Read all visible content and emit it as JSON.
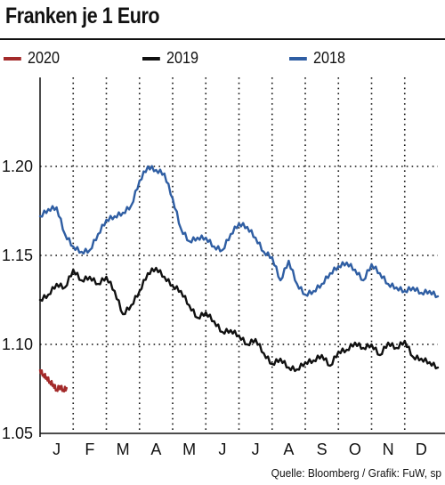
{
  "title": "Franken je 1 Euro",
  "source": "Quelle: Bloomberg / Grafik: FuW, sp",
  "legend": [
    {
      "label": "2020",
      "color": "#a32a2a"
    },
    {
      "label": "2019",
      "color": "#111111"
    },
    {
      "label": "2018",
      "color": "#2f5ea3"
    }
  ],
  "chart_data": {
    "type": "line",
    "title": "Franken je 1 Euro",
    "xlabel": "",
    "ylabel": "",
    "x_tick_labels": [
      "J",
      "F",
      "M",
      "A",
      "M",
      "J",
      "J",
      "A",
      "S",
      "O",
      "N",
      "D"
    ],
    "x_unit": "month index (0 = start of January, 12 = end of December)",
    "xlim": [
      0,
      12
    ],
    "y_ticks": [
      1.05,
      1.1,
      1.15,
      1.2
    ],
    "y_tick_labels": [
      "1.05",
      "1.10",
      "1.15",
      "1.20"
    ],
    "ylim": [
      1.05,
      1.25
    ],
    "grid": true,
    "grid_style": "dotted vertical month boundaries, dotted horizontal at y ticks",
    "legend_position": "top",
    "series": [
      {
        "name": "2020",
        "color": "#a32a2a",
        "x": [
          0,
          0.1,
          0.2,
          0.3,
          0.4,
          0.5,
          0.6,
          0.7,
          0.8
        ],
        "y": [
          1.0855,
          1.083,
          1.0815,
          1.079,
          1.0775,
          1.0745,
          1.0765,
          1.0745,
          1.0755
        ]
      },
      {
        "name": "2019",
        "color": "#111111",
        "x": [
          0,
          0.25,
          0.5,
          0.75,
          1.0,
          1.25,
          1.5,
          1.75,
          2.0,
          2.25,
          2.5,
          2.75,
          3.0,
          3.25,
          3.5,
          3.75,
          4.0,
          4.25,
          4.5,
          4.75,
          5.0,
          5.25,
          5.5,
          5.75,
          6.0,
          6.25,
          6.5,
          6.75,
          7.0,
          7.25,
          7.5,
          7.75,
          8.0,
          8.25,
          8.5,
          8.75,
          9.0,
          9.25,
          9.5,
          9.75,
          10.0,
          10.25,
          10.5,
          10.75,
          11.0,
          11.25,
          11.5,
          11.75,
          12.0
        ],
        "y": [
          1.125,
          1.128,
          1.134,
          1.132,
          1.142,
          1.136,
          1.138,
          1.134,
          1.138,
          1.13,
          1.117,
          1.122,
          1.13,
          1.14,
          1.143,
          1.138,
          1.133,
          1.13,
          1.122,
          1.115,
          1.118,
          1.113,
          1.107,
          1.108,
          1.105,
          1.1,
          1.103,
          1.095,
          1.089,
          1.092,
          1.087,
          1.086,
          1.09,
          1.091,
          1.094,
          1.088,
          1.096,
          1.097,
          1.101,
          1.098,
          1.1,
          1.094,
          1.101,
          1.098,
          1.102,
          1.093,
          1.092,
          1.09,
          1.087
        ]
      },
      {
        "name": "2018",
        "color": "#2f5ea3",
        "x": [
          0,
          0.25,
          0.5,
          0.75,
          1.0,
          1.25,
          1.5,
          1.75,
          2.0,
          2.25,
          2.5,
          2.75,
          3.0,
          3.25,
          3.5,
          3.75,
          4.0,
          4.25,
          4.5,
          4.75,
          5.0,
          5.25,
          5.5,
          5.75,
          6.0,
          6.25,
          6.5,
          6.75,
          7.0,
          7.25,
          7.5,
          7.75,
          8.0,
          8.25,
          8.5,
          8.75,
          9.0,
          9.25,
          9.5,
          9.75,
          10.0,
          10.25,
          10.5,
          10.75,
          11.0,
          11.25,
          11.5,
          11.75,
          12.0
        ],
        "y": [
          1.172,
          1.176,
          1.177,
          1.162,
          1.155,
          1.152,
          1.153,
          1.162,
          1.17,
          1.172,
          1.174,
          1.178,
          1.192,
          1.2,
          1.198,
          1.196,
          1.182,
          1.165,
          1.158,
          1.16,
          1.16,
          1.155,
          1.153,
          1.162,
          1.168,
          1.166,
          1.16,
          1.152,
          1.149,
          1.136,
          1.147,
          1.134,
          1.128,
          1.13,
          1.134,
          1.14,
          1.144,
          1.146,
          1.142,
          1.136,
          1.145,
          1.14,
          1.134,
          1.132,
          1.13,
          1.132,
          1.129,
          1.13,
          1.127
        ]
      }
    ]
  }
}
